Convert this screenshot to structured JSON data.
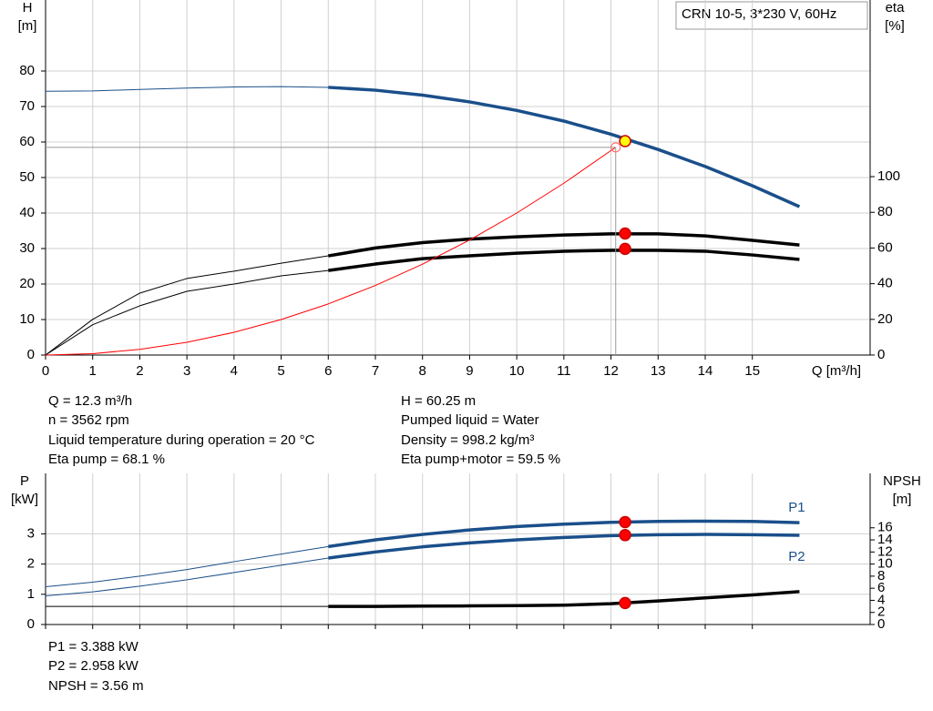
{
  "chart_data": [
    {
      "type": "line",
      "annotation": "CRN 10-5, 3*230 V, 60Hz",
      "y_label": "H",
      "y_unit": "[m]",
      "y2_label": "eta",
      "y2_unit": "[%]",
      "x_label": "Q [m³/h]",
      "xlim": [
        0,
        17.5
      ],
      "xticks": [
        0,
        1,
        2,
        3,
        4,
        5,
        6,
        7,
        8,
        9,
        10,
        11,
        12,
        13,
        14,
        15
      ],
      "xtick_labels": true,
      "ylim": [
        0,
        100
      ],
      "yticks": [
        0,
        10,
        20,
        30,
        40,
        50,
        60,
        70,
        80
      ],
      "y2lim": [
        0,
        199
      ],
      "y2ticks": [
        0,
        20,
        40,
        60,
        80,
        100
      ],
      "grid": true,
      "operating_range": [
        6,
        16
      ],
      "series": [
        {
          "color": "#1a4f8a",
          "x": [
            0,
            1,
            2,
            3,
            4,
            5,
            6,
            7,
            8,
            9,
            10,
            11,
            12,
            13,
            14,
            15,
            16
          ],
          "values": [
            74.3,
            74.4,
            74.8,
            75.2,
            75.5,
            75.6,
            75.4,
            74.6,
            73.2,
            71.3,
            68.9,
            65.9,
            62.2,
            57.9,
            53.1,
            47.7,
            41.8
          ]
        },
        {
          "color": "#000000",
          "axis": "y2",
          "x": [
            0,
            1,
            2,
            3,
            4,
            5,
            6,
            7,
            8,
            9,
            10,
            11,
            12,
            13,
            14,
            15,
            16
          ],
          "values": [
            0,
            20,
            34.7,
            42.9,
            47,
            51.5,
            55.6,
            60,
            63,
            65,
            66.3,
            67.3,
            67.9,
            67.9,
            66.8,
            64.3,
            61.7
          ]
        },
        {
          "color": "#000000",
          "axis": "y2",
          "x": [
            0,
            1,
            2,
            3,
            4,
            5,
            6,
            7,
            8,
            9,
            10,
            11,
            12,
            13,
            14,
            15,
            16
          ],
          "values": [
            0,
            17,
            27.6,
            35.7,
            39.8,
            44.4,
            47.4,
            51,
            54,
            55.6,
            57.1,
            58.2,
            58.7,
            58.7,
            58.2,
            56.1,
            53.6
          ]
        },
        {
          "color": "#ff0000",
          "thin": true,
          "x": [
            0,
            1,
            2,
            3,
            4,
            5,
            6,
            7,
            8,
            9,
            10,
            11,
            12,
            12.1
          ],
          "values": [
            0,
            0.4,
            1.6,
            3.6,
            6.4,
            10,
            14.4,
            19.6,
            25.6,
            32.4,
            40,
            48.4,
            57.6,
            58.5
          ]
        }
      ],
      "points": [
        {
          "x": 12.1,
          "y": 58.5,
          "hollow": true,
          "guides": true,
          "color": "#ff6666"
        },
        {
          "x": 12.3,
          "y": 68.1,
          "axis": "y2",
          "color": "#ff0000"
        },
        {
          "x": 12.3,
          "y": 59.5,
          "axis": "y2",
          "color": "#ff0000"
        },
        {
          "x": 12.3,
          "y": 60.25,
          "color": "#ffff00"
        }
      ]
    },
    {
      "type": "line",
      "y_label": "P",
      "y_unit": "[kW]",
      "y2_label": "NPSH",
      "y2_unit": "[m]",
      "xlim": [
        0,
        17.5
      ],
      "xticks": [
        0,
        1,
        2,
        3,
        4,
        5,
        6,
        7,
        8,
        9,
        10,
        11,
        12,
        13,
        14,
        15
      ],
      "xtick_labels": false,
      "ylim": [
        0,
        5
      ],
      "yticks": [
        0,
        1,
        2,
        3
      ],
      "y2lim": [
        0,
        25
      ],
      "y2ticks": [
        0,
        2,
        4,
        6,
        8,
        10,
        12,
        14,
        16
      ],
      "grid": true,
      "operating_range": [
        6,
        16
      ],
      "series": [
        {
          "name": "P1",
          "color": "#1a4f8a",
          "x": [
            0,
            1,
            2,
            3,
            4,
            5,
            6,
            7,
            8,
            9,
            10,
            11,
            12,
            13,
            14,
            15,
            16
          ],
          "values": [
            1.25,
            1.4,
            1.6,
            1.82,
            2.08,
            2.33,
            2.58,
            2.8,
            2.98,
            3.13,
            3.24,
            3.32,
            3.38,
            3.41,
            3.42,
            3.41,
            3.37
          ]
        },
        {
          "name": "P2",
          "color": "#1a4f8a",
          "x": [
            0,
            1,
            2,
            3,
            4,
            5,
            6,
            7,
            8,
            9,
            10,
            11,
            12,
            13,
            14,
            15,
            16
          ],
          "values": [
            0.95,
            1.08,
            1.27,
            1.48,
            1.72,
            1.96,
            2.2,
            2.4,
            2.57,
            2.7,
            2.8,
            2.88,
            2.94,
            2.97,
            2.98,
            2.97,
            2.95
          ]
        },
        {
          "color": "#000000",
          "axis": "y2",
          "x": [
            0,
            1,
            2,
            3,
            4,
            5,
            6,
            7,
            8,
            9,
            10,
            11,
            12,
            13,
            14,
            15,
            16
          ],
          "values": [
            3,
            3,
            3,
            3,
            3,
            3,
            3,
            3,
            3.05,
            3.08,
            3.12,
            3.2,
            3.45,
            3.9,
            4.4,
            4.9,
            5.45
          ]
        }
      ],
      "points": [
        {
          "x": 12.3,
          "y": 3.388,
          "color": "#ff0000"
        },
        {
          "x": 12.3,
          "y": 2.958,
          "color": "#ff0000"
        },
        {
          "x": 12.3,
          "y": 3.56,
          "axis": "y2",
          "color": "#ff0000"
        }
      ]
    }
  ],
  "operating_info": {
    "left": [
      "Q = 12.3 m³/h",
      "n = 3562 rpm",
      "Liquid temperature during operation = 20 °C",
      "Eta pump = 68.1 %"
    ],
    "right": [
      "H = 60.25 m",
      "Pumped liquid = Water",
      "Density = 998.2 kg/m³",
      "Eta pump+motor = 59.5 %"
    ]
  },
  "power_info": [
    "P1 = 3.388 kW",
    "P2 = 2.958 kW",
    "NPSH = 3.56 m"
  ]
}
